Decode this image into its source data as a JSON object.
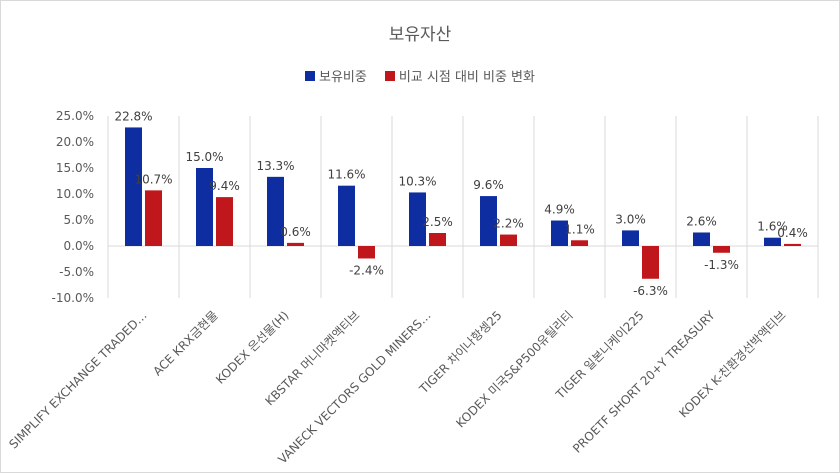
{
  "colors": {
    "series1": "#0E2DA0",
    "series2": "#C0171C",
    "grid": "#d9d9d9",
    "text": "#595959"
  },
  "chart_data": {
    "type": "bar",
    "title": "보유자산",
    "xlabel": "",
    "ylabel": "",
    "ylim": [
      -0.1,
      0.25
    ],
    "yticks": [
      0.25,
      0.2,
      0.15,
      0.1,
      0.05,
      0.0,
      -0.05,
      -0.1
    ],
    "ytick_labels": [
      "25.0%",
      "20.0%",
      "15.0%",
      "10.0%",
      "5.0%",
      "0.0%",
      "-5.0%",
      "-10.0%"
    ],
    "legend_position": "top",
    "grid": "vertical category separators",
    "categories": [
      "SIMPLIFY EXCHANGE TRADED…",
      "ACE KRX금현물",
      "KODEX 은선물(H)",
      "KBSTAR 머니마켓액티브",
      "VANECK VECTORS GOLD MINERS…",
      "TIGER 차이나항셍25",
      "KODEX 미국S&P500유틸리티",
      "TIGER 일본니케이225",
      "PROETF SHORT 20+Y TREASURY",
      "KODEX K-친환경선박액티브"
    ],
    "series": [
      {
        "name": "보유비중",
        "values": [
          0.228,
          0.15,
          0.133,
          0.116,
          0.103,
          0.096,
          0.049,
          0.03,
          0.026,
          0.016
        ],
        "labels": [
          "22.8%",
          "15.0%",
          "13.3%",
          "11.6%",
          "10.3%",
          "9.6%",
          "4.9%",
          "3.0%",
          "2.6%",
          "1.6%"
        ]
      },
      {
        "name": "비교 시점 대비 비중 변화",
        "values": [
          0.107,
          0.094,
          0.006,
          -0.024,
          0.025,
          0.022,
          0.011,
          -0.063,
          -0.013,
          0.004
        ],
        "labels": [
          "10.7%",
          "9.4%",
          "0.6%",
          "-2.4%",
          "2.5%",
          "2.2%",
          "1.1%",
          "-6.3%",
          "-1.3%",
          "0.4%"
        ]
      }
    ]
  }
}
